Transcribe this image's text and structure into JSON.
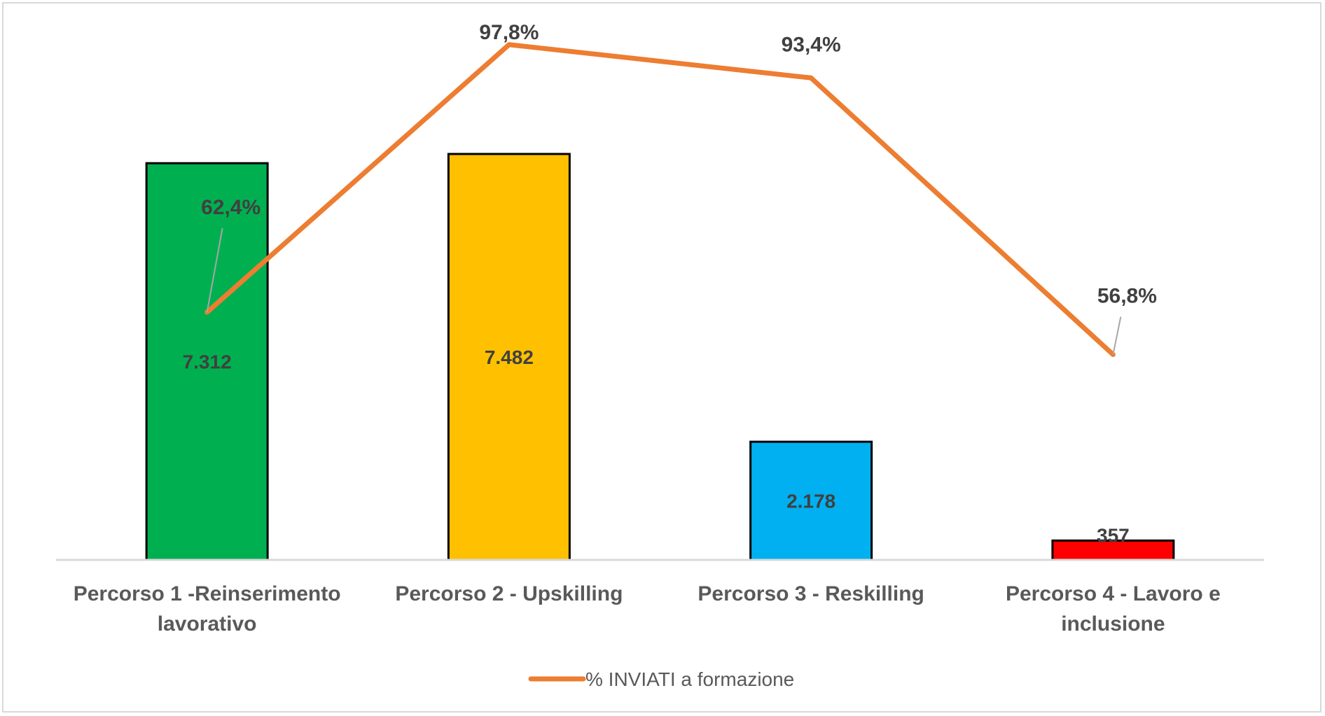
{
  "chart_data": {
    "type": "bar",
    "title": "",
    "categories": [
      "Percorso 1 -Reinserimento lavorativo",
      "Percorso 2 - Upskilling",
      "Percorso 3 - Reskilling",
      "Percorso 4 - Lavoro e inclusione"
    ],
    "category_lines": [
      [
        "Percorso 1 -Reinserimento",
        "lavorativo"
      ],
      [
        "Percorso 2 - Upskilling"
      ],
      [
        "Percorso 3 - Reskilling"
      ],
      [
        "Percorso 4 - Lavoro e",
        "inclusione"
      ]
    ],
    "series": [
      {
        "type": "bar",
        "values": [
          7312,
          7482,
          2178,
          357
        ],
        "value_labels": [
          "7.312",
          "7.482",
          "2.178",
          "357"
        ],
        "colors": [
          "#00b050",
          "#ffc000",
          "#00b0f0",
          "#ff0000"
        ]
      },
      {
        "type": "line",
        "name": "% INVIATI a formazione",
        "values": [
          62.4,
          97.8,
          93.4,
          56.8
        ],
        "value_labels": [
          "62,4%",
          "97,8%",
          "93,4%",
          "56,8%"
        ],
        "color": "#ed7d31"
      }
    ],
    "legend_position": "bottom",
    "grid": false,
    "bar_axis_range": [
      0,
      7800
    ],
    "line_axis_range": [
      0,
      100
    ]
  }
}
